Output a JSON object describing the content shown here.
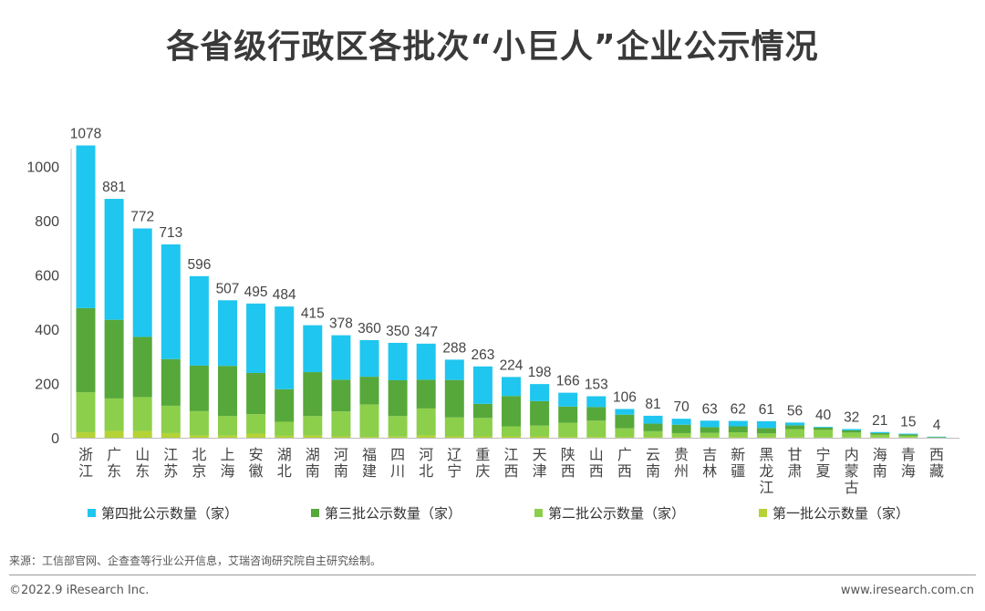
{
  "title": "各省级行政区各批次“小巨人”企业公示情况",
  "source": "来源：工信部官网、企查查等行业公开信息，艾瑞咨询研究院自主研究绘制。",
  "copyright": "©2022.9 iResearch Inc.",
  "website": "www.iresearch.com.cn",
  "colors": {
    "batch4": "#1fc6ef",
    "batch3": "#56a83a",
    "batch2": "#8ccf4a",
    "batch1": "#b5d335"
  },
  "legend": [
    {
      "label": "第四批公示数量（家）",
      "color": "#1fc6ef"
    },
    {
      "label": "第三批公示数量（家）",
      "color": "#56a83a"
    },
    {
      "label": "第二批公示数量（家）",
      "color": "#8ccf4a"
    },
    {
      "label": "第一批公示数量（家）",
      "color": "#b5d335"
    }
  ],
  "chart_data": {
    "type": "bar",
    "stacked": true,
    "categories": [
      "浙江",
      "广东",
      "山东",
      "江苏",
      "北京",
      "上海",
      "安徽",
      "湖北",
      "湖南",
      "河南",
      "福建",
      "四川",
      "河北",
      "辽宁",
      "重庆",
      "江西",
      "天津",
      "陕西",
      "山西",
      "广西",
      "云南",
      "贵州",
      "吉林",
      "新疆",
      "黑龙江",
      "甘肃",
      "宁夏",
      "内蒙古",
      "海南",
      "青海",
      "西藏"
    ],
    "totals": [
      1078,
      881,
      772,
      713,
      596,
      507,
      495,
      484,
      415,
      378,
      360,
      350,
      347,
      288,
      263,
      224,
      198,
      166,
      153,
      106,
      81,
      70,
      63,
      62,
      61,
      56,
      40,
      32,
      21,
      15,
      4
    ],
    "series": [
      {
        "name": "第一批公示数量（家）",
        "values": [
          20,
          25,
          25,
          17,
          8,
          8,
          15,
          7,
          8,
          5,
          3,
          4,
          8,
          5,
          5,
          5,
          5,
          3,
          3,
          2,
          2,
          2,
          2,
          2,
          2,
          2,
          1,
          1,
          1,
          1,
          0
        ]
      },
      {
        "name": "第二批公示数量（家）",
        "values": [
          148,
          120,
          125,
          101,
          90,
          72,
          72,
          52,
          72,
          92,
          120,
          76,
          100,
          70,
          68,
          37,
          40,
          52,
          60,
          33,
          22,
          15,
          16,
          18,
          14,
          30,
          28,
          18,
          10,
          6,
          2
        ]
      },
      {
        "name": "第三批公示数量（家）",
        "values": [
          310,
          290,
          222,
          172,
          168,
          185,
          152,
          120,
          162,
          117,
          102,
          132,
          106,
          138,
          52,
          112,
          90,
          60,
          50,
          50,
          28,
          31,
          21,
          22,
          20,
          14,
          8,
          8,
          6,
          5,
          1
        ]
      },
      {
        "name": "第四批公示数量（家）",
        "values": [
          600,
          446,
          400,
          423,
          330,
          242,
          256,
          305,
          173,
          164,
          135,
          138,
          133,
          75,
          138,
          70,
          63,
          51,
          40,
          21,
          29,
          22,
          24,
          20,
          25,
          10,
          3,
          5,
          4,
          3,
          1
        ]
      }
    ],
    "ylim": [
      0,
      1100
    ],
    "yticks": [
      0,
      200,
      400,
      600,
      800,
      1000
    ],
    "xlabel": "",
    "ylabel": "",
    "legend_position": "bottom",
    "grid": false
  }
}
